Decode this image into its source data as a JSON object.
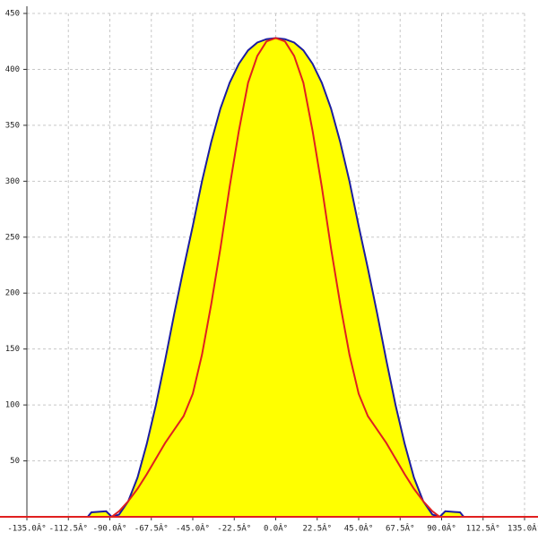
{
  "chart_data": {
    "type": "line",
    "x": [
      -135,
      -102,
      -100,
      -92,
      -89,
      -85,
      -80,
      -75,
      -70,
      -65,
      -60,
      -55,
      -50,
      -45,
      -40,
      -35,
      -30,
      -25,
      -20,
      -15,
      -10,
      -5,
      0,
      5,
      10,
      15,
      20,
      25,
      30,
      35,
      40,
      45,
      50,
      55,
      60,
      65,
      70,
      75,
      80,
      85,
      89,
      92,
      100,
      102,
      135
    ],
    "series": [
      {
        "color": "#1c1ca0",
        "fill": "#ffff00",
        "values": [
          0,
          0,
          4,
          5,
          0,
          2,
          14,
          35,
          65,
          100,
          140,
          182,
          222,
          260,
          300,
          335,
          365,
          388,
          405,
          417,
          424,
          427,
          428,
          427,
          424,
          417,
          405,
          388,
          365,
          335,
          300,
          260,
          222,
          182,
          140,
          100,
          65,
          35,
          14,
          2,
          0,
          5,
          4,
          0,
          0
        ]
      },
      {
        "color": "#e02020",
        "values": [
          0,
          0,
          0,
          0,
          0,
          5,
          14,
          25,
          38,
          52,
          66,
          78,
          90,
          110,
          145,
          190,
          240,
          295,
          345,
          388,
          412,
          425,
          428,
          425,
          412,
          388,
          345,
          295,
          240,
          190,
          145,
          110,
          90,
          78,
          66,
          52,
          38,
          25,
          14,
          5,
          0,
          0,
          0,
          0,
          0
        ]
      }
    ],
    "xlim": [
      -135,
      135
    ],
    "xticks": [
      {
        "value": -135,
        "label": "-135.0Â°"
      },
      {
        "value": -112.5,
        "label": "-112.5Â°"
      },
      {
        "value": -90,
        "label": "-90.0Â°"
      },
      {
        "value": -67.5,
        "label": "-67.5Â°"
      },
      {
        "value": -45,
        "label": "-45.0Â°"
      },
      {
        "value": -22.5,
        "label": "-22.5Â°"
      },
      {
        "value": 0,
        "label": "0.0Â°"
      },
      {
        "value": 22.5,
        "label": "22.5Â°"
      },
      {
        "value": 45,
        "label": "45.0Â°"
      },
      {
        "value": 67.5,
        "label": "67.5Â°"
      },
      {
        "value": 90,
        "label": "90.0Â°"
      },
      {
        "value": 112.5,
        "label": "112.5Â°"
      },
      {
        "value": 135,
        "label": "135.0Â°"
      }
    ],
    "ylim": [
      0,
      450
    ],
    "yticks": [
      50,
      100,
      150,
      200,
      250,
      300,
      350,
      400,
      450
    ],
    "grid": true
  }
}
